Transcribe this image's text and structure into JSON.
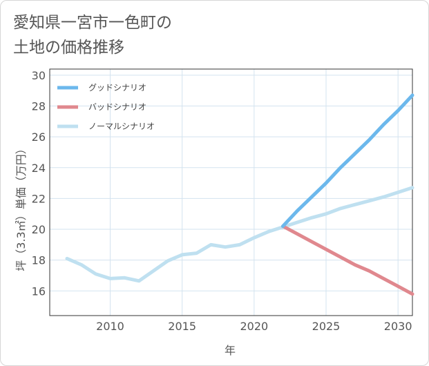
{
  "page": {
    "title_line1": "愛知県一宮市一色町の",
    "title_line2": "土地の価格推移"
  },
  "chart_data": {
    "type": "line",
    "title": "愛知県一宮市一色町の土地の価格推移",
    "xlabel": "年",
    "ylabel": "坪（3.3㎡）単価（万円）",
    "xlim": [
      2005.8,
      2031
    ],
    "ylim": [
      14.4,
      30.4
    ],
    "xticks": [
      2010,
      2015,
      2020,
      2025,
      2030
    ],
    "yticks": [
      16,
      18,
      20,
      22,
      24,
      26,
      28,
      30
    ],
    "grid": true,
    "legend_position": "top-left",
    "series": [
      {
        "name": "グッドシナリオ",
        "color": "#6cb8ec",
        "x": [
          2022,
          2023,
          2024,
          2025,
          2026,
          2027,
          2028,
          2029,
          2030,
          2031
        ],
        "y": [
          20.2,
          21.2,
          22.1,
          23.0,
          24.0,
          24.9,
          25.8,
          26.8,
          27.7,
          28.7
        ]
      },
      {
        "name": "バッドシナリオ",
        "color": "#e0888e",
        "x": [
          2022,
          2023,
          2024,
          2025,
          2026,
          2027,
          2028,
          2029,
          2030,
          2031
        ],
        "y": [
          20.2,
          19.7,
          19.2,
          18.7,
          18.2,
          17.7,
          17.3,
          16.8,
          16.3,
          15.8
        ]
      },
      {
        "name": "ノーマルシナリオ",
        "color": "#bfe0f0",
        "x": [
          2007,
          2008,
          2009,
          2010,
          2011,
          2012,
          2013,
          2014,
          2015,
          2016,
          2017,
          2018,
          2019,
          2020,
          2021,
          2022,
          2023,
          2024,
          2025,
          2026,
          2027,
          2028,
          2029,
          2030,
          2031
        ],
        "y": [
          18.1,
          17.7,
          17.1,
          16.8,
          16.85,
          16.65,
          17.3,
          17.95,
          18.35,
          18.45,
          19.0,
          18.85,
          19.0,
          19.45,
          19.85,
          20.15,
          20.45,
          20.75,
          21.0,
          21.35,
          21.6,
          21.85,
          22.1,
          22.4,
          22.7
        ]
      }
    ]
  }
}
